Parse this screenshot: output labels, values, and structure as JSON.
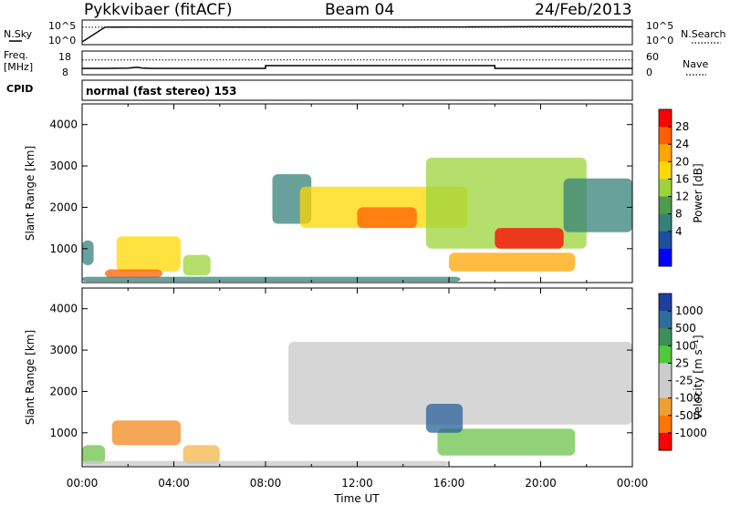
{
  "header": {
    "station": "Pykkvibaer (fitACF)",
    "beam": "Beam 04",
    "date": "24/Feb/2013"
  },
  "chart_data": [
    {
      "type": "line",
      "panel": "noise",
      "left_label": "N.Sky",
      "right_label": "N.Search",
      "left_ticks": [
        "10^5",
        "10^0"
      ],
      "right_ticks": [
        "10^5",
        "10^0"
      ],
      "yscale": "log",
      "series": [
        {
          "style": "solid",
          "x": [
            0,
            1,
            2,
            3,
            4,
            5,
            6,
            7,
            8,
            9,
            10,
            11,
            12,
            13,
            14,
            15,
            16,
            17,
            18,
            19,
            20,
            21,
            22,
            23,
            24
          ],
          "values": [
            1.0,
            32000.0,
            33000.0,
            33000.0,
            34000.0,
            33000.0,
            33000.0,
            34000.0,
            33000.0,
            34000.0,
            34000.0,
            35000.0,
            36000.0,
            35000.0,
            34000.0,
            35000.0,
            36000.0,
            38000.0,
            40000.0,
            43000.0,
            45000.0,
            48000.0,
            46000.0,
            47000.0,
            44000.0
          ]
        },
        {
          "style": "dotted",
          "x": [
            0,
            24
          ],
          "values": [
            30000.0,
            30000.0
          ]
        }
      ]
    },
    {
      "type": "line",
      "panel": "frequency",
      "left_label_lines": [
        "Freq.",
        "[MHz]"
      ],
      "right_label": "Nave",
      "left_ticks": [
        "18",
        "8"
      ],
      "right_ticks": [
        "60",
        "0"
      ],
      "ylim": [
        8,
        18
      ],
      "y2lim": [
        0,
        60
      ],
      "series": [
        {
          "name": "Freq",
          "style": "solid",
          "x": [
            0,
            1,
            2,
            2.4,
            2.6,
            3,
            8,
            8,
            18,
            18,
            24
          ],
          "values": [
            10.0,
            10.0,
            10.1,
            10.6,
            10.2,
            10.0,
            10.0,
            11.5,
            11.5,
            10.0,
            10.0
          ]
        },
        {
          "name": "Nave",
          "style": "dotted",
          "x": [
            0,
            24
          ],
          "values": [
            40,
            40
          ]
        }
      ]
    },
    {
      "type": "text",
      "panel": "cpid",
      "label": "CPID",
      "mode_text": "normal (fast stereo) 153"
    },
    {
      "type": "heatmap",
      "panel": "power",
      "ylabel": "Slant Range [km]",
      "xlim": [
        0,
        24
      ],
      "ylim": [
        180,
        4500
      ],
      "yticks": [
        1000,
        2000,
        3000,
        4000
      ],
      "colorbar_label": "Power [dB]",
      "colorbar_ticks": [
        "28",
        "24",
        "20",
        "16",
        "12",
        "8",
        "4"
      ],
      "colorbar_colors": [
        "#ff0000",
        "#ff5f00",
        "#ffa500",
        "#ffd700",
        "#9bd43a",
        "#4f9a4f",
        "#36807a",
        "#1d4ea0",
        "#0000ff"
      ],
      "regions": [
        {
          "x0": 0.0,
          "x1": 0.5,
          "y0": 600,
          "y1": 1200,
          "level": 2
        },
        {
          "x0": 1.5,
          "x1": 4.3,
          "y0": 450,
          "y1": 1300,
          "level": 5
        },
        {
          "x0": 1.0,
          "x1": 3.5,
          "y0": 300,
          "y1": 500,
          "level": 7
        },
        {
          "x0": 4.4,
          "x1": 5.6,
          "y0": 350,
          "y1": 850,
          "level": 4
        },
        {
          "x0": 0.0,
          "x1": 16.5,
          "y0": 200,
          "y1": 320,
          "level": 2
        },
        {
          "x0": 8.3,
          "x1": 10.0,
          "y0": 1600,
          "y1": 2800,
          "level": 2
        },
        {
          "x0": 9.5,
          "x1": 16.8,
          "y0": 1500,
          "y1": 2500,
          "level": 5
        },
        {
          "x0": 12.0,
          "x1": 14.6,
          "y0": 1500,
          "y1": 2000,
          "level": 7
        },
        {
          "x0": 15.0,
          "x1": 22.0,
          "y0": 1000,
          "y1": 3200,
          "level": 4
        },
        {
          "x0": 18.0,
          "x1": 21.0,
          "y0": 1000,
          "y1": 1500,
          "level": 8
        },
        {
          "x0": 16.0,
          "x1": 21.5,
          "y0": 450,
          "y1": 900,
          "level": 6
        },
        {
          "x0": 21.0,
          "x1": 24.0,
          "y0": 1400,
          "y1": 2700,
          "level": 2
        }
      ]
    },
    {
      "type": "heatmap",
      "panel": "velocity",
      "ylabel": "Slant Range [km]",
      "xlabel": "Time UT",
      "xlim": [
        0,
        24
      ],
      "ylim": [
        180,
        4500
      ],
      "xticks": [
        "00:00",
        "04:00",
        "08:00",
        "12:00",
        "16:00",
        "20:00",
        "00:00"
      ],
      "yticks": [
        1000,
        2000,
        3000,
        4000
      ],
      "colorbar_label": "Velocity [m s⁻¹]",
      "colorbar_ticks": [
        "1000",
        "500",
        "100",
        "25",
        "-25",
        "-100",
        "-500",
        "-1000"
      ],
      "colorbar_colors": [
        "#1f3fa0",
        "#2e6f9a",
        "#3d8f5a",
        "#4fc93a",
        "#cccccc",
        "#cccccc",
        "#f0a030",
        "#ff7700",
        "#ff0000"
      ],
      "regions": [
        {
          "x0": 1.3,
          "x1": 4.3,
          "y0": 700,
          "y1": 1300,
          "color": "#f28a1e"
        },
        {
          "x0": 0.0,
          "x1": 1.0,
          "y0": 250,
          "y1": 700,
          "color": "#6cc24a"
        },
        {
          "x0": 4.4,
          "x1": 6.0,
          "y0": 250,
          "y1": 700,
          "color": "#f2b44a"
        },
        {
          "x0": 9.0,
          "x1": 24.0,
          "y0": 1200,
          "y1": 3200,
          "color": "#c8c8c8"
        },
        {
          "x0": 15.5,
          "x1": 21.5,
          "y0": 450,
          "y1": 1100,
          "color": "#6cc24a"
        },
        {
          "x0": 15.0,
          "x1": 16.6,
          "y0": 1000,
          "y1": 1700,
          "color": "#2a5f9a"
        },
        {
          "x0": 0.0,
          "x1": 16.0,
          "y0": 200,
          "y1": 320,
          "color": "#c8c8c8"
        }
      ]
    }
  ]
}
